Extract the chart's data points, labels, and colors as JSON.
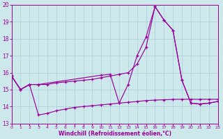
{
  "background_color": "#cce8ea",
  "grid_color": "#aaccdd",
  "line_color": "#990099",
  "xlim": [
    0,
    23
  ],
  "ylim": [
    13,
    20
  ],
  "xlabel": "Windchill (Refroidissement éolien,°C)",
  "xticks": [
    0,
    1,
    2,
    3,
    4,
    5,
    6,
    7,
    8,
    9,
    10,
    11,
    12,
    13,
    14,
    15,
    16,
    17,
    18,
    19,
    20,
    21,
    22,
    23
  ],
  "yticks": [
    13,
    14,
    15,
    16,
    17,
    18,
    19,
    20
  ],
  "series1_x": [
    0,
    1,
    2,
    3,
    4,
    5,
    6,
    7,
    8,
    9,
    10,
    11,
    12,
    13,
    14,
    15,
    16,
    17,
    18,
    19,
    20,
    21,
    22,
    23
  ],
  "series1_y": [
    15.8,
    15.0,
    15.3,
    15.3,
    15.3,
    15.4,
    15.45,
    15.5,
    15.55,
    15.6,
    15.7,
    15.8,
    15.9,
    16.0,
    16.5,
    17.5,
    19.9,
    19.1,
    18.5,
    15.55,
    14.2,
    14.15,
    14.2,
    14.3
  ],
  "series2_x": [
    0,
    1,
    2,
    3,
    10,
    11,
    12,
    13,
    14,
    15,
    16,
    17,
    18,
    19,
    20,
    21,
    22,
    23
  ],
  "series2_y": [
    15.8,
    15.0,
    15.3,
    15.3,
    15.85,
    15.9,
    14.2,
    15.3,
    17.0,
    18.1,
    19.9,
    19.1,
    18.5,
    15.55,
    14.2,
    14.15,
    14.2,
    14.3
  ],
  "series3_x": [
    0,
    1,
    2,
    3,
    4,
    5,
    6,
    7,
    8,
    9,
    10,
    11,
    12,
    13,
    14,
    15,
    16,
    17,
    18,
    19,
    20,
    21,
    22,
    23
  ],
  "series3_y": [
    15.8,
    15.0,
    15.3,
    13.5,
    13.6,
    13.75,
    13.85,
    13.95,
    14.0,
    14.05,
    14.1,
    14.15,
    14.2,
    14.25,
    14.3,
    14.35,
    14.38,
    14.4,
    14.42,
    14.43,
    14.43,
    14.43,
    14.43,
    14.43
  ]
}
